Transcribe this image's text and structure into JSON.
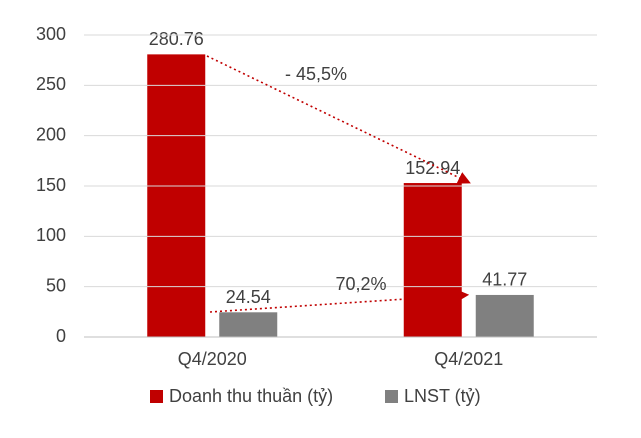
{
  "chart_data": {
    "type": "bar",
    "categories": [
      "Q4/2020",
      "Q4/2021"
    ],
    "series": [
      {
        "name": "Doanh thu thuần (tỷ)",
        "color": "#c00000",
        "values": [
          280.76,
          152.94
        ]
      },
      {
        "name": "LNST (tỷ)",
        "color": "#808080",
        "values": [
          24.54,
          41.77
        ]
      }
    ],
    "annotations": [
      "- 45,5%",
      "70,2%"
    ],
    "ylim": [
      0,
      300
    ],
    "yticks": [
      0,
      50,
      100,
      150,
      200,
      250,
      300
    ],
    "grid": true,
    "legend": "bottom"
  }
}
